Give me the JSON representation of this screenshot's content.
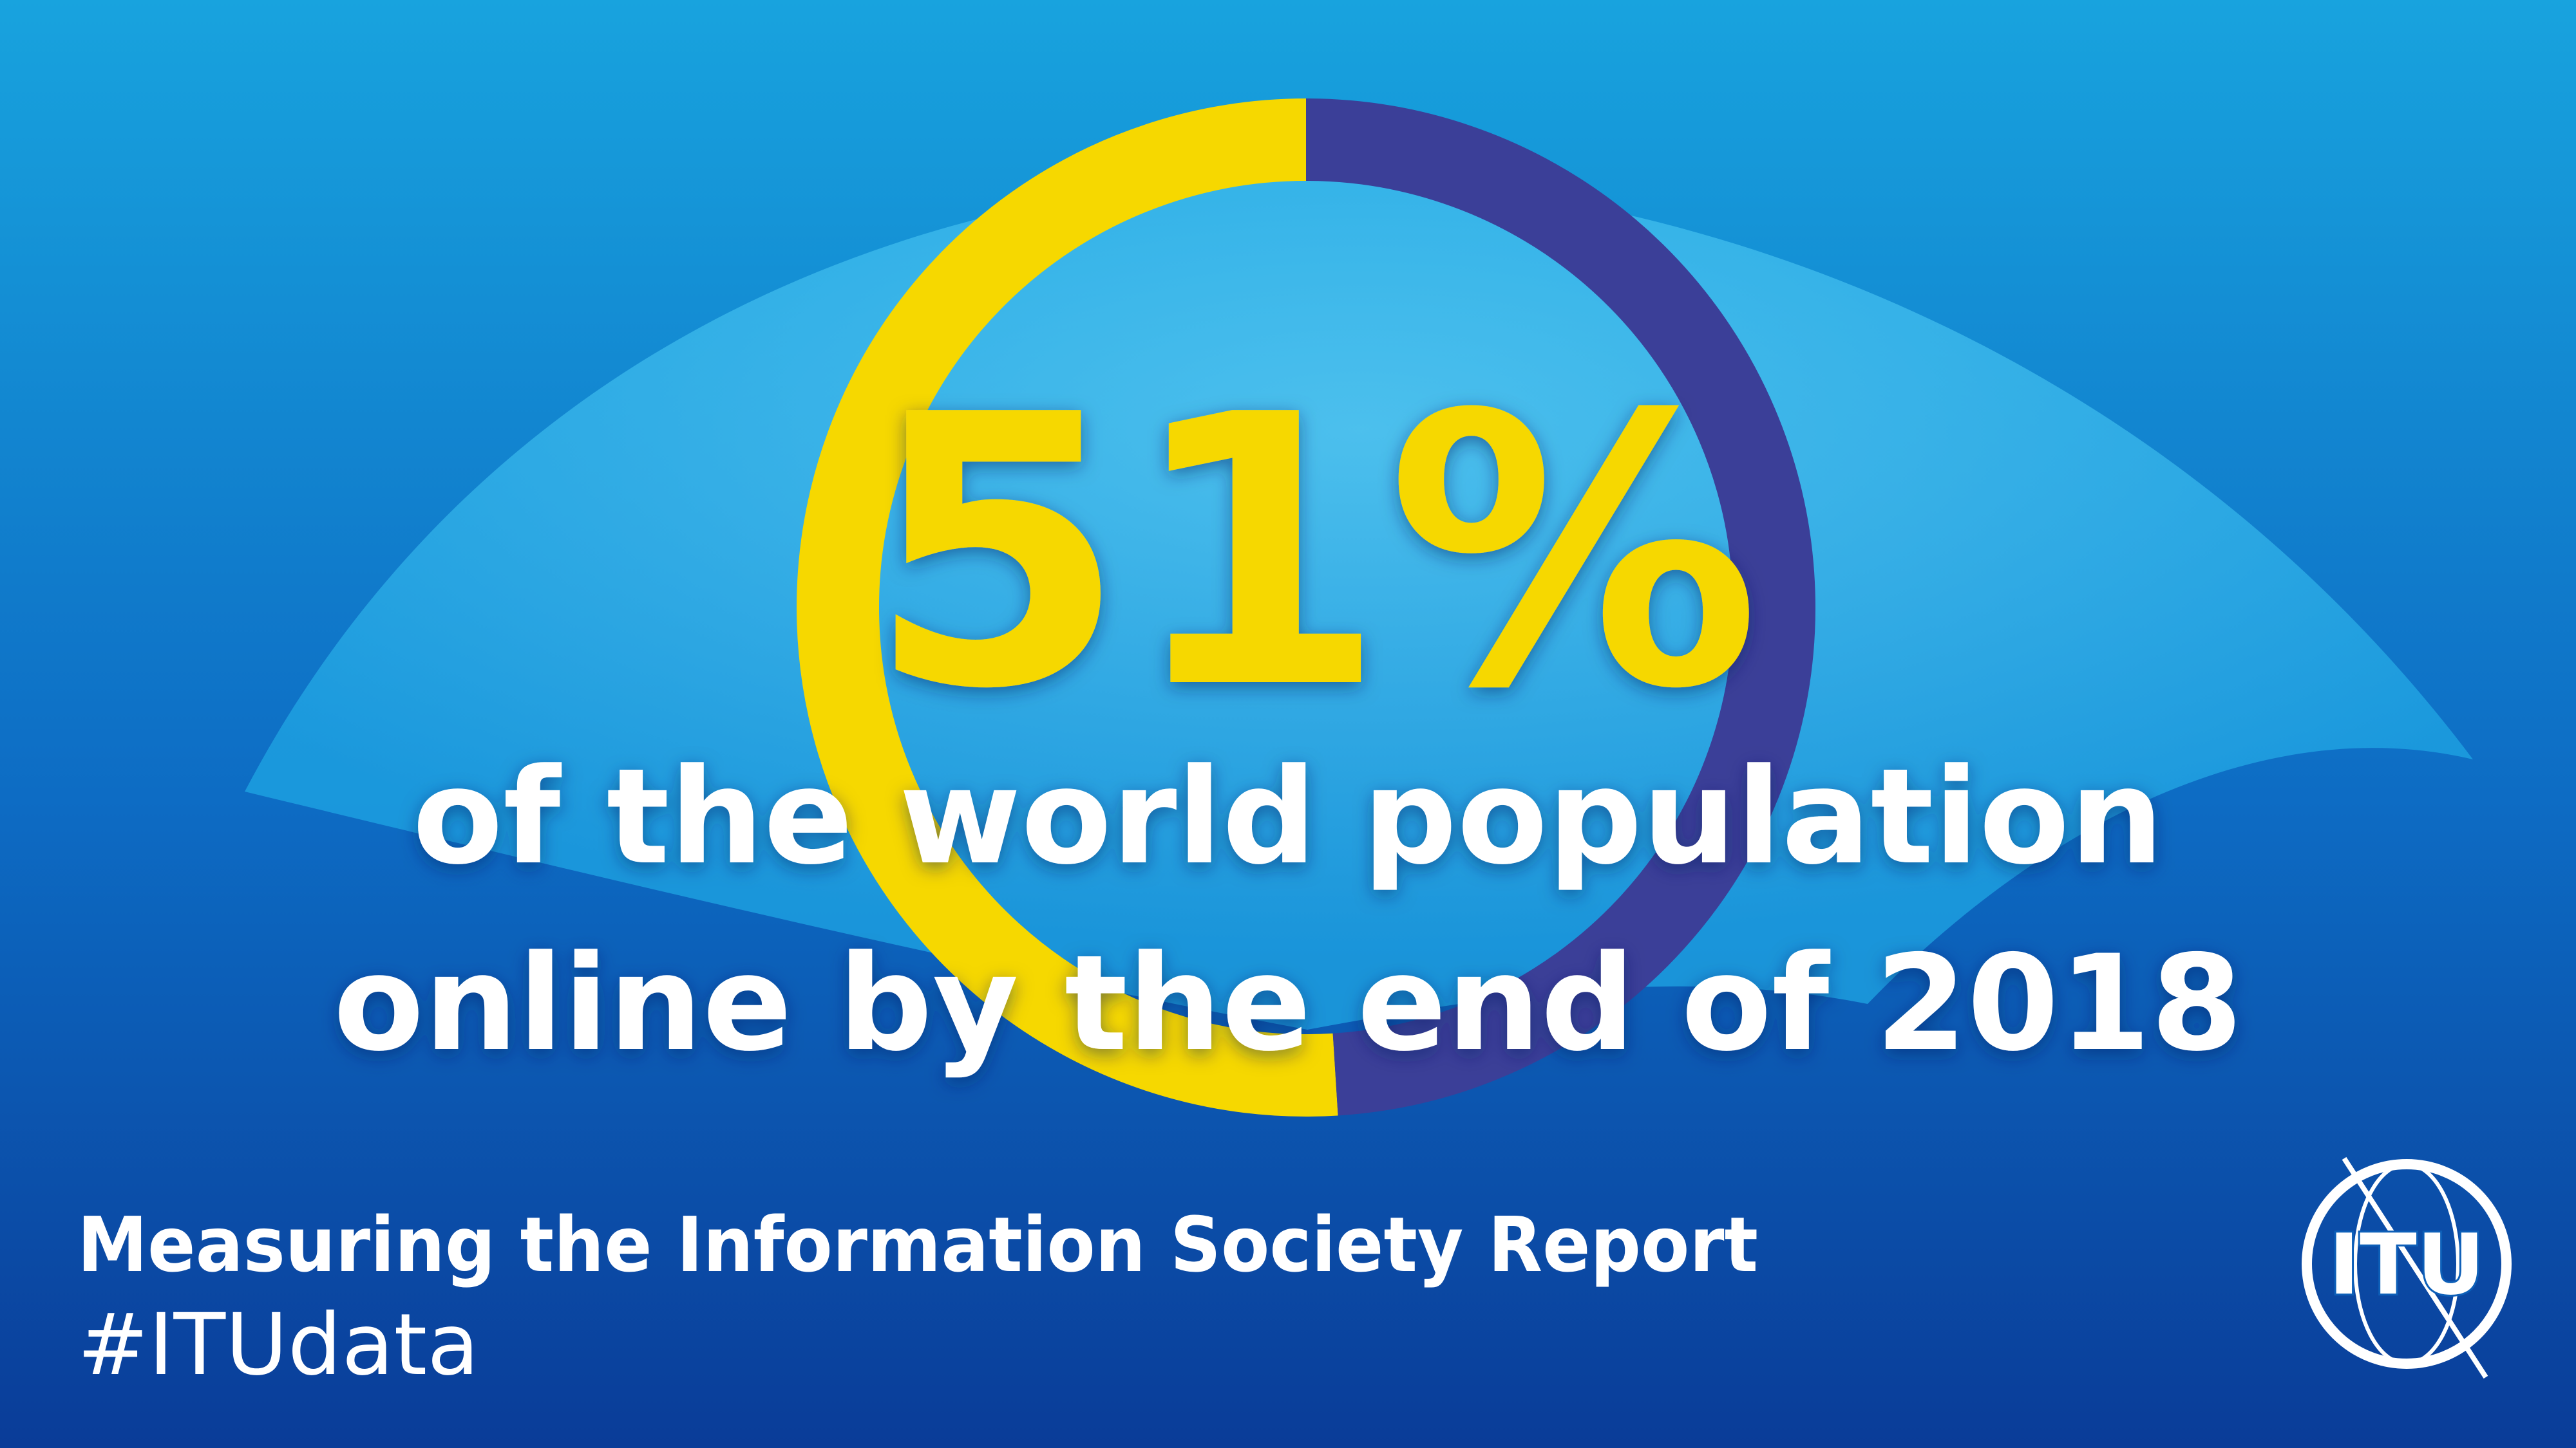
{
  "chart_data": {
    "type": "donut",
    "title": "51%",
    "subtitle": [
      "of the world population",
      "online by the end of 2018"
    ],
    "values": [
      51,
      49
    ],
    "value_labels": [
      "51%",
      null
    ],
    "colors": [
      "#f6d800",
      "#3b3f98"
    ],
    "footer": {
      "report": "Measuring the Information Society Report",
      "hashtag": "#ITUdata",
      "logo": "ITU"
    }
  }
}
